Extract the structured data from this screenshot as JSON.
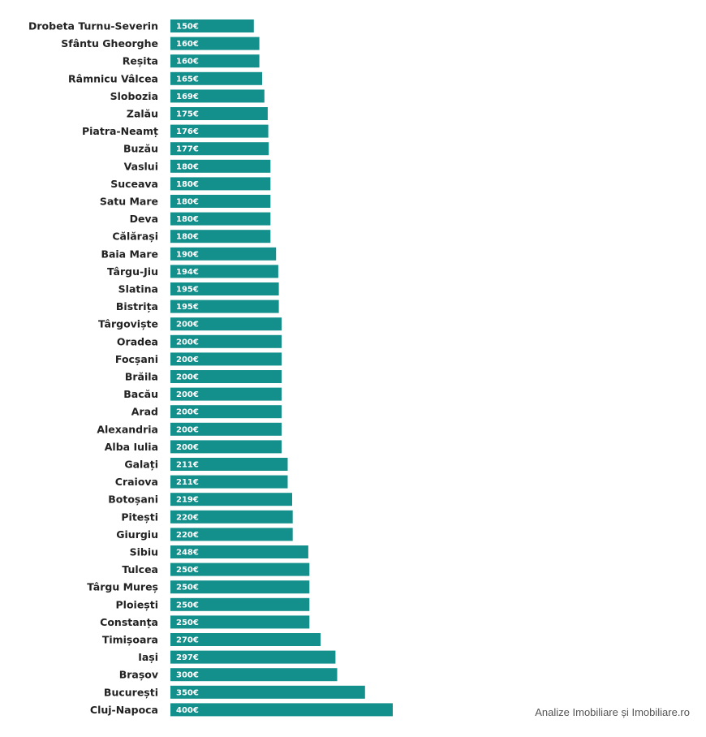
{
  "chart_data": {
    "type": "bar",
    "orientation": "horizontal",
    "value_suffix": "€",
    "categories": [
      "Drobeta Turnu-Severin",
      "Sfântu Gheorghe",
      "Reșita",
      "Râmnicu Vâlcea",
      "Slobozia",
      "Zalău",
      "Piatra-Neamț",
      "Buzău",
      "Vaslui",
      "Suceava",
      "Satu Mare",
      "Deva",
      "Călărași",
      "Baia Mare",
      "Târgu-Jiu",
      "Slatina",
      "Bistrița",
      "Târgoviște",
      "Oradea",
      "Focșani",
      "Brăila",
      "Bacău",
      "Arad",
      "Alexandria",
      "Alba Iulia",
      "Galați",
      "Craiova",
      "Botoșani",
      "Pitești",
      "Giurgiu",
      "Sibiu",
      "Tulcea",
      "Târgu Mureș",
      "Ploiești",
      "Constanța",
      "Timișoara",
      "Iași",
      "Brașov",
      "București",
      "Cluj-Napoca"
    ],
    "values": [
      150,
      160,
      160,
      165,
      169,
      175,
      176,
      177,
      180,
      180,
      180,
      180,
      180,
      190,
      194,
      195,
      195,
      200,
      200,
      200,
      200,
      200,
      200,
      200,
      200,
      211,
      211,
      219,
      220,
      220,
      248,
      250,
      250,
      250,
      250,
      270,
      297,
      300,
      350,
      400
    ],
    "bar_color": "#138f8c",
    "grid": false,
    "legend": false
  },
  "source": "Analize Imobiliare și Imobiliare.ro"
}
